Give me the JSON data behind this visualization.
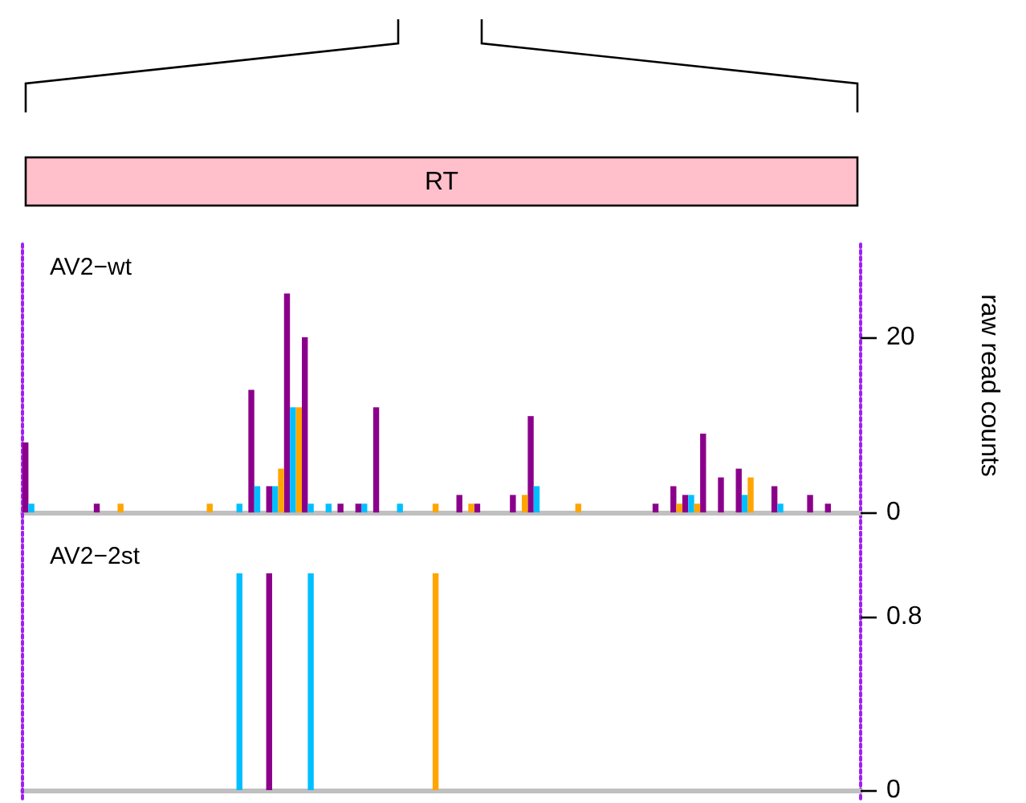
{
  "chart_data": [
    {
      "type": "bar",
      "title": "AV2−wt",
      "ylabel": "raw read counts",
      "annotations": [
        "RT"
      ],
      "tick_labels": "y",
      "ylim": [
        -2,
        31
      ],
      "yticks": [
        0,
        20
      ],
      "categories": [
        null,
        null,
        null,
        null,
        null,
        null,
        null,
        null,
        null,
        null,
        null,
        null,
        null,
        null,
        null,
        null,
        null,
        null,
        null,
        null,
        null,
        null,
        null,
        null,
        null,
        null,
        null,
        null,
        null,
        null,
        null,
        null,
        null,
        null,
        null,
        null,
        null,
        null,
        null,
        null,
        null,
        null,
        null,
        null,
        null,
        null,
        null,
        null,
        null,
        null,
        null,
        null,
        null,
        null,
        null,
        null,
        null,
        null,
        null,
        null,
        null,
        null,
        null,
        null,
        null,
        null,
        null,
        null,
        null,
        null,
        null,
        null,
        null,
        null,
        null,
        null,
        null,
        null,
        null,
        null,
        null,
        null,
        null,
        null,
        null,
        null,
        null,
        null,
        null,
        null,
        null,
        null,
        null,
        null,
        null,
        null,
        null,
        null,
        null,
        null,
        null,
        null,
        null,
        null,
        null,
        null,
        null,
        null,
        null,
        null,
        null,
        null,
        null,
        null,
        null,
        null,
        null,
        null,
        null,
        null,
        null,
        null,
        null,
        null,
        null,
        null,
        null,
        null,
        null,
        null,
        null,
        null,
        null,
        null,
        null,
        null,
        null,
        null,
        null,
        null,
        null
      ],
      "series": [
        {
          "color": "#8b008b",
          "values": [
            8,
            null,
            null,
            null,
            null,
            null,
            null,
            null,
            null,
            null,
            null,
            null,
            1,
            null,
            null,
            null,
            null,
            null,
            null,
            null,
            null,
            null,
            null,
            null,
            null,
            null,
            null,
            null,
            null,
            null,
            null,
            null,
            null,
            null,
            null,
            null,
            null,
            null,
            14,
            null,
            null,
            3,
            null,
            null,
            25,
            null,
            null,
            20,
            null,
            null,
            null,
            null,
            null,
            1,
            null,
            null,
            1,
            null,
            null,
            12,
            null,
            null,
            null,
            null,
            null,
            null,
            null,
            null,
            null,
            null,
            null,
            null,
            null,
            2,
            null,
            null,
            1,
            null,
            null,
            null,
            null,
            null,
            2,
            null,
            null,
            11,
            null,
            null,
            null,
            null,
            null,
            null,
            null,
            null,
            null,
            null,
            null,
            null,
            null,
            null,
            null,
            null,
            null,
            null,
            null,
            null,
            1,
            null,
            null,
            3,
            null,
            2,
            null,
            null,
            9,
            null,
            null,
            4,
            null,
            null,
            5,
            null,
            null,
            null,
            null,
            null,
            3,
            null,
            null,
            null,
            null,
            null,
            2,
            null,
            null,
            1,
            null,
            null,
            null,
            null,
            null
          ]
        },
        {
          "color": "#00bfff",
          "values": [
            null,
            1,
            null,
            null,
            null,
            null,
            null,
            null,
            null,
            null,
            null,
            null,
            null,
            null,
            null,
            null,
            null,
            null,
            null,
            null,
            null,
            null,
            null,
            null,
            null,
            null,
            null,
            null,
            null,
            null,
            null,
            null,
            null,
            null,
            null,
            null,
            1,
            null,
            null,
            3,
            null,
            null,
            3,
            null,
            null,
            12,
            null,
            null,
            1,
            null,
            null,
            1,
            null,
            null,
            null,
            null,
            null,
            1,
            null,
            null,
            null,
            null,
            null,
            1,
            null,
            null,
            null,
            null,
            null,
            null,
            null,
            null,
            null,
            null,
            null,
            null,
            null,
            null,
            null,
            null,
            null,
            null,
            null,
            null,
            null,
            null,
            3,
            null,
            null,
            null,
            null,
            null,
            null,
            null,
            null,
            null,
            null,
            null,
            null,
            null,
            null,
            null,
            null,
            null,
            null,
            null,
            null,
            null,
            null,
            null,
            null,
            null,
            2,
            null,
            null,
            null,
            null,
            null,
            null,
            null,
            null,
            2,
            null,
            null,
            null,
            null,
            null,
            1,
            null,
            null,
            null,
            null,
            null,
            null,
            null,
            null,
            null,
            null,
            null,
            null,
            null
          ]
        },
        {
          "color": "#ffa500",
          "values": [
            null,
            null,
            null,
            null,
            null,
            null,
            null,
            null,
            null,
            null,
            null,
            null,
            null,
            null,
            null,
            null,
            1,
            null,
            null,
            null,
            null,
            null,
            null,
            null,
            null,
            null,
            null,
            null,
            null,
            null,
            null,
            1,
            null,
            null,
            null,
            null,
            null,
            null,
            null,
            null,
            null,
            null,
            null,
            5,
            null,
            null,
            12,
            null,
            null,
            null,
            null,
            null,
            null,
            null,
            null,
            null,
            null,
            null,
            null,
            null,
            null,
            null,
            null,
            null,
            null,
            null,
            null,
            null,
            null,
            1,
            null,
            null,
            null,
            null,
            null,
            1,
            null,
            null,
            null,
            null,
            null,
            null,
            null,
            null,
            2,
            null,
            null,
            null,
            null,
            null,
            null,
            null,
            null,
            1,
            null,
            null,
            null,
            null,
            null,
            null,
            null,
            null,
            null,
            null,
            null,
            null,
            null,
            null,
            null,
            null,
            1,
            null,
            null,
            1,
            null,
            null,
            null,
            null,
            null,
            null,
            null,
            null,
            4,
            null,
            null,
            null,
            null,
            null,
            null,
            null,
            null,
            null,
            null,
            null,
            null,
            null,
            null,
            null,
            null,
            null,
            null
          ]
        }
      ]
    },
    {
      "type": "bar",
      "title": "AV2−2st",
      "tick_labels": "y",
      "ylim": [
        -0.04,
        1.2
      ],
      "yticks": [
        0,
        0.8
      ],
      "categories": [
        null,
        null,
        null,
        null,
        null,
        null,
        null,
        null,
        null,
        null,
        null,
        null,
        null,
        null,
        null,
        null,
        null,
        null,
        null,
        null,
        null,
        null,
        null,
        null,
        null,
        null,
        null,
        null,
        null,
        null,
        null,
        null,
        null,
        null,
        null,
        null,
        null,
        null,
        null,
        null,
        null,
        null,
        null,
        null,
        null,
        null,
        null,
        null,
        null,
        null,
        null,
        null,
        null,
        null,
        null,
        null,
        null,
        null,
        null,
        null,
        null,
        null,
        null,
        null,
        null,
        null,
        null,
        null,
        null,
        null,
        null,
        null,
        null,
        null,
        null,
        null,
        null,
        null,
        null,
        null,
        null,
        null,
        null,
        null,
        null,
        null,
        null,
        null,
        null,
        null,
        null,
        null,
        null,
        null,
        null,
        null,
        null,
        null,
        null,
        null,
        null,
        null,
        null,
        null,
        null,
        null,
        null,
        null,
        null,
        null,
        null,
        null,
        null,
        null,
        null,
        null,
        null,
        null,
        null,
        null,
        null,
        null,
        null,
        null,
        null,
        null,
        null,
        null,
        null,
        null,
        null,
        null,
        null,
        null,
        null,
        null,
        null,
        null,
        null,
        null,
        null
      ],
      "series": [
        {
          "color": "#8b008b",
          "values": [
            null,
            null,
            null,
            null,
            null,
            null,
            null,
            null,
            null,
            null,
            null,
            null,
            null,
            null,
            null,
            null,
            null,
            null,
            null,
            null,
            null,
            null,
            null,
            null,
            null,
            null,
            null,
            null,
            null,
            null,
            null,
            null,
            null,
            null,
            null,
            null,
            null,
            null,
            null,
            null,
            null,
            1,
            null,
            null,
            null,
            null,
            null,
            null,
            null,
            null,
            null,
            null,
            null,
            null,
            null,
            null,
            null,
            null,
            null,
            null,
            null,
            null,
            null,
            null,
            null,
            null,
            null,
            null,
            null,
            null,
            null,
            null,
            null,
            null,
            null,
            null,
            null,
            null,
            null,
            null,
            null,
            null,
            null,
            null,
            null,
            null,
            null,
            null,
            null,
            null,
            null,
            null,
            null,
            null,
            null,
            null,
            null,
            null,
            null,
            null,
            null,
            null,
            null,
            null,
            null,
            null,
            null,
            null,
            null,
            null,
            null,
            null,
            null,
            null,
            null,
            null,
            null,
            null,
            null,
            null,
            null,
            null,
            null,
            null,
            null,
            null,
            null,
            null,
            null,
            null,
            null,
            null,
            null,
            null,
            null,
            null,
            null,
            null,
            null,
            null,
            null
          ]
        },
        {
          "color": "#00bfff",
          "values": [
            null,
            null,
            null,
            null,
            null,
            null,
            null,
            null,
            null,
            null,
            null,
            null,
            null,
            null,
            null,
            null,
            null,
            null,
            null,
            null,
            null,
            null,
            null,
            null,
            null,
            null,
            null,
            null,
            null,
            null,
            null,
            null,
            null,
            null,
            null,
            null,
            1,
            null,
            null,
            null,
            null,
            null,
            null,
            null,
            null,
            null,
            null,
            null,
            1,
            null,
            null,
            null,
            null,
            null,
            null,
            null,
            null,
            null,
            null,
            null,
            null,
            null,
            null,
            null,
            null,
            null,
            null,
            null,
            null,
            null,
            null,
            null,
            null,
            null,
            null,
            null,
            null,
            null,
            null,
            null,
            null,
            null,
            null,
            null,
            null,
            null,
            null,
            null,
            null,
            null,
            null,
            null,
            null,
            null,
            null,
            null,
            null,
            null,
            null,
            null,
            null,
            null,
            null,
            null,
            null,
            null,
            null,
            null,
            null,
            null,
            null,
            null,
            null,
            null,
            null,
            null,
            null,
            null,
            null,
            null,
            null,
            null,
            null,
            null,
            null,
            null,
            null,
            null,
            null,
            null,
            null,
            null,
            null,
            null,
            null,
            null,
            null,
            null,
            null,
            null,
            null
          ]
        },
        {
          "color": "#ffa500",
          "values": [
            null,
            null,
            null,
            null,
            null,
            null,
            null,
            null,
            null,
            null,
            null,
            null,
            null,
            null,
            null,
            null,
            null,
            null,
            null,
            null,
            null,
            null,
            null,
            null,
            null,
            null,
            null,
            null,
            null,
            null,
            null,
            null,
            null,
            null,
            null,
            null,
            null,
            null,
            null,
            null,
            null,
            null,
            null,
            null,
            null,
            null,
            null,
            null,
            null,
            null,
            null,
            null,
            null,
            null,
            null,
            null,
            null,
            null,
            null,
            null,
            null,
            null,
            null,
            null,
            null,
            null,
            null,
            null,
            null,
            1,
            null,
            null,
            null,
            null,
            null,
            null,
            null,
            null,
            null,
            null,
            null,
            null,
            null,
            null,
            null,
            null,
            null,
            null,
            null,
            null,
            null,
            null,
            null,
            null,
            null,
            null,
            null,
            null,
            null,
            null,
            null,
            null,
            null,
            null,
            null,
            null,
            null,
            null,
            null,
            null,
            null,
            null,
            null,
            null,
            null,
            null,
            null,
            null,
            null,
            null,
            null,
            null,
            null,
            null,
            null,
            null,
            null,
            null,
            null,
            null,
            null,
            null,
            null,
            null,
            null,
            null,
            null,
            null,
            null,
            null,
            null
          ]
        }
      ]
    }
  ]
}
